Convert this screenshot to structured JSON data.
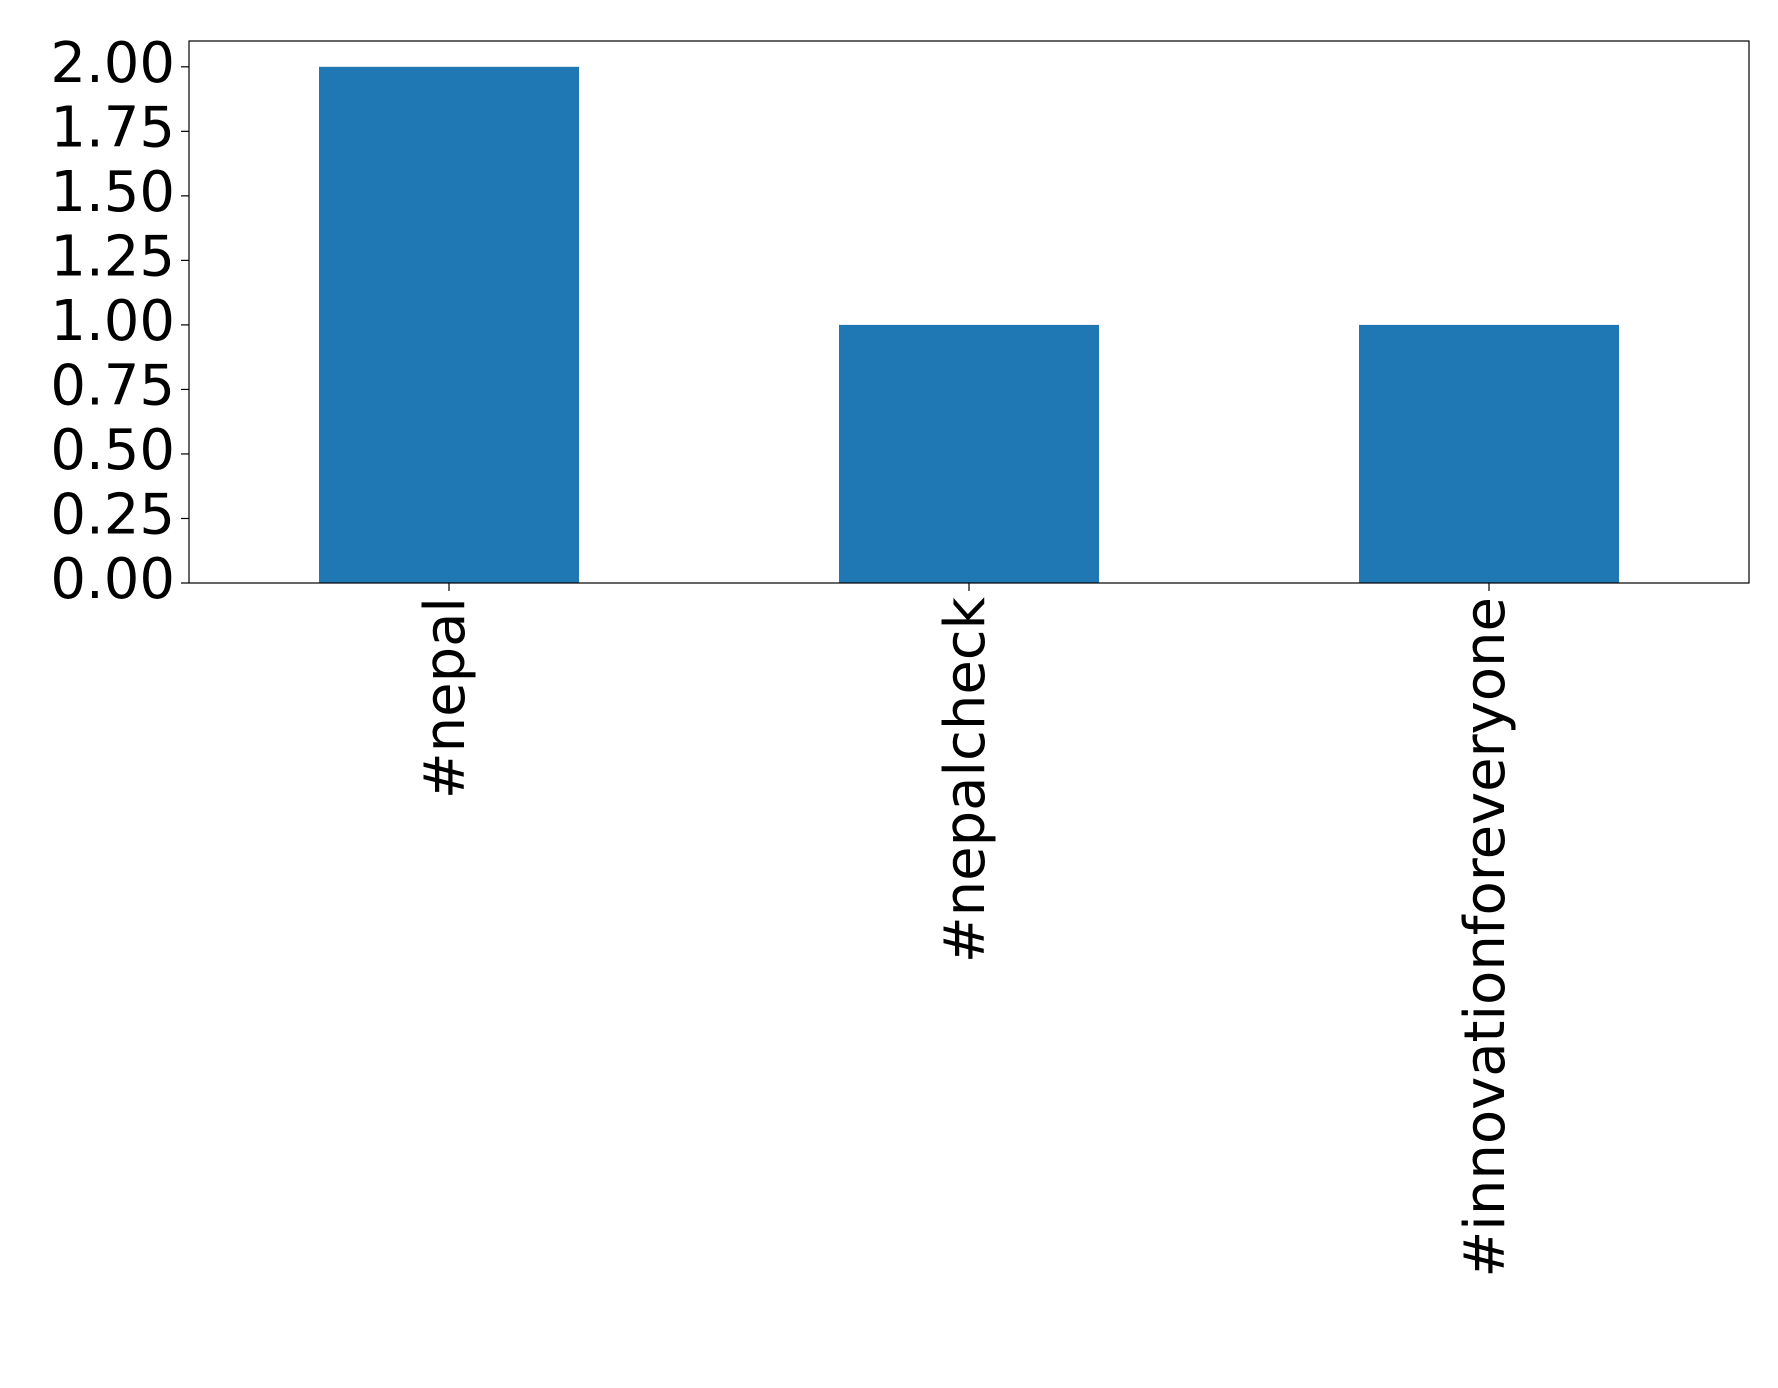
{
  "chart_data": {
    "type": "bar",
    "categories": [
      "#nepal",
      "#nepalcheck",
      "#innovationforeveryone"
    ],
    "values": [
      2,
      1,
      1
    ],
    "color": "#1f77b4",
    "ylim": [
      0,
      2.1
    ],
    "yticks": [
      {
        "value": 0,
        "label": "0.00"
      },
      {
        "value": 0.25,
        "label": "0.25"
      },
      {
        "value": 0.5,
        "label": "0.50"
      },
      {
        "value": 0.75,
        "label": "0.75"
      },
      {
        "value": 1,
        "label": "1.00"
      },
      {
        "value": 1.25,
        "label": "1.25"
      },
      {
        "value": 1.5,
        "label": "1.50"
      },
      {
        "value": 1.75,
        "label": "1.75"
      },
      {
        "value": 2,
        "label": "2.00"
      }
    ],
    "grid": false
  }
}
